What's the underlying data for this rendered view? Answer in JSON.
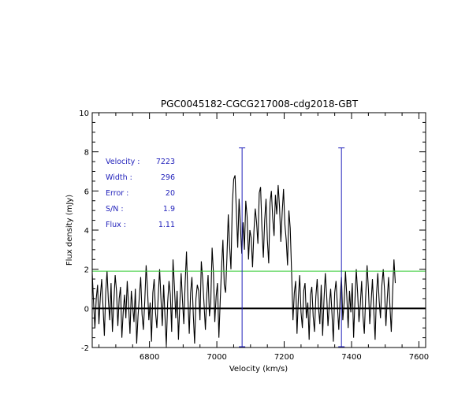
{
  "chart_data": {
    "type": "line",
    "title": "PGC0045182-CGCG217008-cdg2018-GBT",
    "xlabel": "Velocity (km/s)",
    "ylabel": "Flux density (mJy)",
    "xlim": [
      6630,
      7620
    ],
    "ylim": [
      -2,
      10
    ],
    "x_ticks": [
      6800,
      7000,
      7200,
      7400,
      7600
    ],
    "y_ticks": [
      -2,
      0,
      2,
      4,
      6,
      8,
      10
    ],
    "grid": false,
    "series": [
      {
        "color": "#000000",
        "x_start": 6630,
        "x_step": 4,
        "values": [
          1.8,
          0.3,
          -1.0,
          0.5,
          1.2,
          -0.8,
          0.6,
          1.5,
          0.1,
          -1.4,
          0.8,
          1.9,
          0.4,
          -0.6,
          1.3,
          -1.2,
          0.2,
          1.7,
          0.9,
          -0.9,
          0.5,
          1.1,
          -1.5,
          -0.2,
          0.7,
          -0.5,
          1.4,
          0.2,
          -1.3,
          0.9,
          0.1,
          -0.7,
          1.0,
          -1.8,
          -0.4,
          0.6,
          1.6,
          -0.3,
          -1.1,
          0.4,
          2.2,
          1.0,
          -0.6,
          0.3,
          -1.7,
          0.8,
          1.5,
          -0.2,
          -1.0,
          0.6,
          2.0,
          0.5,
          -0.9,
          1.2,
          -0.4,
          -1.9,
          0.3,
          1.4,
          0.7,
          -1.2,
          2.5,
          1.1,
          -0.5,
          0.9,
          -1.6,
          0.2,
          1.8,
          0.4,
          -0.8,
          1.3,
          2.9,
          0.6,
          -1.3,
          0.8,
          1.6,
          -0.3,
          -1.8,
          0.5,
          1.2,
          0.9,
          -0.6,
          2.4,
          1.5,
          0.2,
          -1.1,
          0.7,
          1.7,
          -0.4,
          0.3,
          3.1,
          1.8,
          -0.7,
          0.6,
          1.3,
          -1.5,
          0.4,
          2.1,
          3.5,
          1.2,
          0.8,
          2.6,
          4.8,
          3.2,
          2.0,
          5.3,
          6.6,
          6.8,
          4.9,
          3.1,
          5.6,
          4.2,
          2.8,
          4.4,
          3.0,
          5.5,
          4.7,
          2.5,
          4.0,
          3.6,
          2.1,
          3.9,
          5.1,
          4.4,
          3.3,
          5.9,
          6.2,
          4.1,
          2.6,
          4.5,
          5.6,
          3.5,
          2.3,
          5.4,
          6.0,
          4.6,
          3.7,
          5.8,
          4.8,
          6.3,
          5.2,
          3.4,
          4.9,
          6.1,
          4.3,
          3.5,
          2.2,
          5.0,
          4.1,
          1.9,
          -0.6,
          0.8,
          1.4,
          -1.3,
          0.5,
          1.7,
          -0.2,
          -1.0,
          0.9,
          1.3,
          -0.5,
          0.3,
          -1.6,
          0.7,
          1.1,
          -0.4,
          -1.2,
          0.6,
          1.5,
          0.0,
          -0.8,
          1.2,
          -1.4,
          0.4,
          1.8,
          0.7,
          -0.9,
          0.2,
          1.0,
          -0.3,
          -1.7,
          0.8,
          1.4,
          0.1,
          -1.1,
          0.5,
          1.6,
          -0.6,
          0.3,
          1.9,
          0.6,
          -1.0,
          0.9,
          -0.2,
          1.3,
          -1.5,
          0.4,
          2.0,
          0.8,
          -0.7,
          0.2,
          1.4,
          -0.4,
          -1.3,
          0.6,
          2.2,
          1.0,
          -0.8,
          0.3,
          1.5,
          -0.1,
          -1.6,
          0.7,
          1.8,
          0.4,
          -0.5,
          1.2,
          2.0,
          0.9,
          -0.9,
          0.5,
          1.6,
          0.1,
          -1.2,
          0.8,
          2.5,
          1.3
        ]
      }
    ],
    "zero_line": 0,
    "rms_line": {
      "value": 1.9,
      "color": "#33cc33"
    },
    "markers": {
      "color": "#2222bb",
      "x": [
        7075,
        7370
      ],
      "y": 8.2
    },
    "annotations": [
      {
        "label": "Velocity :",
        "value": "7223"
      },
      {
        "label": "Width :",
        "value": "296"
      },
      {
        "label": "Error :",
        "value": "20"
      },
      {
        "label": "S/N :",
        "value": "1.9"
      },
      {
        "label": "Flux :",
        "value": "1.11"
      }
    ],
    "annotation_color": "#2222bb"
  }
}
